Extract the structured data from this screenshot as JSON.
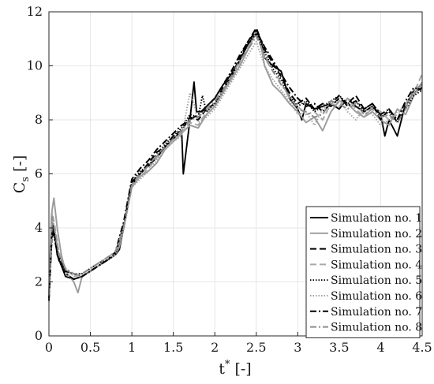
{
  "chart_data": {
    "type": "line",
    "xlabel": "t* [-]",
    "ylabel": "C_s [-]",
    "xlim": [
      0,
      4.5
    ],
    "ylim": [
      0,
      12
    ],
    "xticks": [
      0,
      0.5,
      1,
      1.5,
      2,
      2.5,
      3,
      3.5,
      4,
      4.5
    ],
    "yticks": [
      0,
      2,
      4,
      6,
      8,
      10,
      12
    ],
    "grid": true,
    "legend_position": "bottom-right",
    "series": [
      {
        "name": "Simulation no. 1",
        "color": "#000000",
        "dash": "solid",
        "width": 1.9,
        "x": [
          0,
          0.03,
          0.06,
          0.1,
          0.15,
          0.2,
          0.3,
          0.4,
          0.5,
          0.6,
          0.7,
          0.8,
          0.85,
          0.9,
          1.0,
          1.1,
          1.2,
          1.3,
          1.4,
          1.5,
          1.6,
          1.62,
          1.7,
          1.75,
          1.78,
          1.85,
          1.9,
          2.0,
          2.1,
          2.2,
          2.3,
          2.4,
          2.5,
          2.55,
          2.6,
          2.7,
          2.8,
          2.9,
          3.0,
          3.05,
          3.1,
          3.2,
          3.3,
          3.4,
          3.5,
          3.6,
          3.7,
          3.8,
          3.9,
          4.0,
          4.05,
          4.1,
          4.2,
          4.25,
          4.3,
          4.4,
          4.5
        ],
        "y": [
          1.4,
          3.6,
          4.0,
          3.0,
          2.6,
          2.2,
          2.1,
          2.2,
          2.4,
          2.6,
          2.8,
          3.0,
          3.2,
          4.0,
          5.6,
          6.0,
          6.3,
          6.6,
          7.0,
          7.3,
          7.6,
          6.0,
          8.0,
          9.4,
          8.3,
          8.3,
          8.5,
          8.8,
          9.3,
          9.7,
          10.2,
          10.8,
          11.2,
          11.0,
          10.3,
          10.0,
          9.8,
          8.8,
          8.4,
          8.0,
          8.6,
          8.4,
          8.5,
          8.6,
          8.4,
          8.8,
          8.5,
          8.3,
          8.5,
          8.2,
          7.4,
          8.0,
          7.4,
          8.0,
          8.6,
          9.0,
          9.2
        ]
      },
      {
        "name": "Simulation no. 2",
        "color": "#9a9a9a",
        "dash": "solid",
        "width": 1.9,
        "x": [
          0,
          0.03,
          0.06,
          0.1,
          0.15,
          0.2,
          0.3,
          0.35,
          0.4,
          0.5,
          0.6,
          0.7,
          0.8,
          0.85,
          0.9,
          1.0,
          1.1,
          1.2,
          1.3,
          1.4,
          1.5,
          1.6,
          1.7,
          1.8,
          1.9,
          2.0,
          2.1,
          2.2,
          2.3,
          2.4,
          2.5,
          2.55,
          2.6,
          2.7,
          2.8,
          2.9,
          3.0,
          3.1,
          3.2,
          3.3,
          3.4,
          3.5,
          3.6,
          3.7,
          3.8,
          3.9,
          4.0,
          4.1,
          4.2,
          4.3,
          4.4,
          4.5
        ],
        "y": [
          1.6,
          4.5,
          5.1,
          4.0,
          3.0,
          2.4,
          2.0,
          1.6,
          2.2,
          2.4,
          2.6,
          2.8,
          3.0,
          3.3,
          4.0,
          5.5,
          5.9,
          6.1,
          6.4,
          6.9,
          7.2,
          7.5,
          7.8,
          7.7,
          8.2,
          8.5,
          9.0,
          9.5,
          10.0,
          10.6,
          11.3,
          10.9,
          10.0,
          9.3,
          9.0,
          8.6,
          8.3,
          7.9,
          8.1,
          7.6,
          8.3,
          8.7,
          8.6,
          8.3,
          8.1,
          8.3,
          8.0,
          7.8,
          8.4,
          8.2,
          8.9,
          9.4
        ]
      },
      {
        "name": "Simulation no. 3",
        "color": "#000000",
        "dash": "8,4",
        "width": 2.0,
        "x": [
          0,
          0.04,
          0.08,
          0.12,
          0.2,
          0.3,
          0.4,
          0.5,
          0.6,
          0.7,
          0.8,
          0.9,
          1.0,
          1.1,
          1.2,
          1.3,
          1.4,
          1.5,
          1.6,
          1.7,
          1.8,
          1.9,
          2.0,
          2.1,
          2.2,
          2.3,
          2.4,
          2.5,
          2.6,
          2.7,
          2.8,
          2.9,
          3.0,
          3.1,
          3.2,
          3.3,
          3.4,
          3.5,
          3.6,
          3.7,
          3.8,
          3.9,
          4.0,
          4.1,
          4.2,
          4.3,
          4.4,
          4.5
        ],
        "y": [
          1.5,
          4.2,
          3.6,
          3.0,
          2.4,
          2.3,
          2.2,
          2.4,
          2.6,
          2.8,
          3.0,
          4.1,
          5.7,
          6.0,
          6.4,
          6.8,
          7.0,
          7.4,
          7.6,
          8.1,
          8.0,
          8.4,
          8.6,
          9.2,
          9.6,
          10.3,
          10.9,
          11.4,
          10.6,
          10.1,
          9.6,
          9.0,
          8.6,
          8.8,
          8.4,
          8.6,
          8.5,
          8.8,
          8.6,
          8.9,
          8.4,
          8.6,
          8.0,
          8.4,
          7.9,
          8.5,
          9.1,
          9.3
        ]
      },
      {
        "name": "Simulation no. 4",
        "color": "#a8a8a8",
        "dash": "8,4",
        "width": 2.0,
        "x": [
          0,
          0.04,
          0.08,
          0.12,
          0.2,
          0.3,
          0.4,
          0.5,
          0.6,
          0.7,
          0.8,
          0.9,
          1.0,
          1.1,
          1.2,
          1.3,
          1.4,
          1.5,
          1.6,
          1.7,
          1.8,
          1.9,
          2.0,
          2.1,
          2.2,
          2.3,
          2.4,
          2.5,
          2.6,
          2.7,
          2.8,
          2.9,
          3.0,
          3.1,
          3.2,
          3.3,
          3.4,
          3.5,
          3.6,
          3.7,
          3.8,
          3.9,
          4.0,
          4.1,
          4.2,
          4.3,
          4.4,
          4.5
        ],
        "y": [
          1.6,
          4.6,
          3.9,
          3.1,
          2.5,
          2.2,
          2.3,
          2.5,
          2.7,
          2.9,
          3.1,
          4.0,
          5.6,
          5.9,
          6.2,
          6.6,
          6.9,
          7.2,
          7.5,
          7.9,
          7.8,
          8.3,
          8.6,
          9.0,
          9.5,
          10.1,
          10.7,
          11.2,
          10.3,
          9.8,
          9.4,
          8.8,
          8.5,
          8.2,
          8.3,
          8.0,
          8.6,
          8.5,
          8.8,
          8.4,
          8.1,
          8.5,
          8.3,
          8.0,
          8.2,
          8.6,
          9.0,
          9.7
        ]
      },
      {
        "name": "Simulation no. 5",
        "color": "#000000",
        "dash": "1.5,2",
        "width": 1.9,
        "x": [
          0,
          0.04,
          0.08,
          0.12,
          0.2,
          0.3,
          0.4,
          0.5,
          0.6,
          0.7,
          0.8,
          0.9,
          1.0,
          1.1,
          1.2,
          1.3,
          1.4,
          1.5,
          1.6,
          1.7,
          1.8,
          1.85,
          1.9,
          2.0,
          2.1,
          2.2,
          2.3,
          2.4,
          2.5,
          2.6,
          2.7,
          2.8,
          2.9,
          3.0,
          3.1,
          3.2,
          3.3,
          3.4,
          3.5,
          3.6,
          3.7,
          3.8,
          3.9,
          4.0,
          4.1,
          4.2,
          4.3,
          4.4,
          4.5
        ],
        "y": [
          1.4,
          3.9,
          3.5,
          2.9,
          2.4,
          2.3,
          2.3,
          2.5,
          2.7,
          2.8,
          3.0,
          4.0,
          5.7,
          6.1,
          6.3,
          6.7,
          7.1,
          7.4,
          7.7,
          8.2,
          8.1,
          8.9,
          8.3,
          8.6,
          9.1,
          9.6,
          10.2,
          10.8,
          11.2,
          10.5,
          9.9,
          9.5,
          8.9,
          8.5,
          8.7,
          8.3,
          8.5,
          8.7,
          8.9,
          8.6,
          8.7,
          8.3,
          8.5,
          8.1,
          8.3,
          7.9,
          8.4,
          8.9,
          9.1
        ]
      },
      {
        "name": "Simulation no. 6",
        "color": "#a0a0a0",
        "dash": "1.5,2",
        "width": 1.9,
        "x": [
          0,
          0.04,
          0.08,
          0.12,
          0.2,
          0.3,
          0.4,
          0.5,
          0.6,
          0.7,
          0.8,
          0.9,
          1.0,
          1.1,
          1.2,
          1.3,
          1.4,
          1.5,
          1.6,
          1.7,
          1.75,
          1.8,
          1.9,
          2.0,
          2.1,
          2.2,
          2.3,
          2.4,
          2.5,
          2.6,
          2.7,
          2.8,
          2.9,
          3.0,
          3.1,
          3.2,
          3.3,
          3.4,
          3.5,
          3.6,
          3.7,
          3.8,
          3.9,
          4.0,
          4.1,
          4.2,
          4.3,
          4.4,
          4.5
        ],
        "y": [
          1.5,
          4.3,
          3.8,
          3.0,
          2.5,
          2.2,
          2.2,
          2.4,
          2.6,
          2.8,
          3.0,
          3.9,
          5.5,
          5.8,
          6.1,
          6.5,
          6.9,
          7.2,
          7.4,
          9.0,
          8.6,
          7.9,
          8.1,
          8.4,
          8.9,
          9.4,
          9.9,
          10.4,
          10.9,
          10.0,
          9.5,
          9.1,
          8.7,
          8.2,
          8.3,
          7.8,
          8.4,
          8.6,
          8.7,
          8.3,
          8.0,
          8.4,
          8.2,
          7.8,
          8.0,
          8.3,
          8.5,
          9.0,
          9.4
        ]
      },
      {
        "name": "Simulation no. 7",
        "color": "#000000",
        "dash": "8,3,2,3",
        "width": 2.0,
        "x": [
          0,
          0.04,
          0.08,
          0.12,
          0.2,
          0.3,
          0.4,
          0.5,
          0.6,
          0.7,
          0.8,
          0.9,
          1.0,
          1.1,
          1.2,
          1.3,
          1.4,
          1.5,
          1.6,
          1.7,
          1.8,
          1.9,
          2.0,
          2.1,
          2.2,
          2.3,
          2.4,
          2.5,
          2.6,
          2.7,
          2.8,
          2.9,
          3.0,
          3.1,
          3.2,
          3.3,
          3.4,
          3.5,
          3.6,
          3.7,
          3.8,
          3.9,
          4.0,
          4.1,
          4.2,
          4.3,
          4.4,
          4.5
        ],
        "y": [
          1.3,
          4.0,
          3.4,
          2.8,
          2.3,
          2.1,
          2.2,
          2.4,
          2.6,
          2.8,
          3.1,
          4.2,
          5.8,
          6.2,
          6.5,
          6.9,
          7.2,
          7.5,
          7.8,
          8.0,
          8.2,
          8.5,
          8.8,
          9.3,
          9.8,
          10.4,
          10.9,
          11.3,
          10.7,
          10.2,
          9.7,
          9.2,
          8.8,
          8.5,
          8.6,
          8.3,
          8.6,
          8.9,
          8.5,
          8.7,
          8.4,
          8.6,
          8.2,
          8.4,
          8.0,
          8.7,
          9.2,
          9.1
        ]
      },
      {
        "name": "Simulation no. 8",
        "color": "#8c8c8c",
        "dash": "8,3,2,3",
        "width": 2.0,
        "x": [
          0,
          0.04,
          0.08,
          0.12,
          0.2,
          0.3,
          0.4,
          0.5,
          0.6,
          0.7,
          0.8,
          0.9,
          1.0,
          1.1,
          1.2,
          1.3,
          1.4,
          1.5,
          1.6,
          1.7,
          1.8,
          1.9,
          2.0,
          2.1,
          2.2,
          2.3,
          2.4,
          2.5,
          2.6,
          2.7,
          2.8,
          2.9,
          3.0,
          3.1,
          3.2,
          3.3,
          3.4,
          3.5,
          3.6,
          3.7,
          3.8,
          3.9,
          4.0,
          4.1,
          4.2,
          4.3,
          4.4,
          4.5
        ],
        "y": [
          1.5,
          4.4,
          3.7,
          3.0,
          2.5,
          2.3,
          2.3,
          2.5,
          2.7,
          2.9,
          3.1,
          4.0,
          5.6,
          6.0,
          6.3,
          6.7,
          7.0,
          7.3,
          7.6,
          8.0,
          8.1,
          8.4,
          8.7,
          9.1,
          9.6,
          10.2,
          10.6,
          11.1,
          10.4,
          9.8,
          9.3,
          8.9,
          8.4,
          8.3,
          8.1,
          8.2,
          8.7,
          8.6,
          8.4,
          8.6,
          8.2,
          8.4,
          8.1,
          8.2,
          7.9,
          8.4,
          9.1,
          9.3
        ]
      }
    ]
  }
}
